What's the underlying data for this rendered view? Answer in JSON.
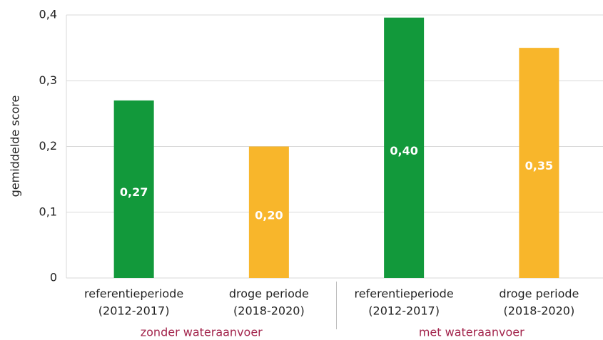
{
  "chart_data": {
    "type": "bar",
    "y_label": "gemiddelde score",
    "categories": [
      [
        "referentieperiode",
        "(2012-2017)"
      ],
      [
        "droge periode",
        "(2018-2020)"
      ],
      [
        "referentieperiode",
        "(2012-2017)"
      ],
      [
        "droge periode",
        "(2018-2020)"
      ]
    ],
    "groups": [
      "zonder wateraanvoer",
      "met wateraanvoer"
    ],
    "values": [
      0.27,
      0.2,
      0.396,
      0.35
    ],
    "value_labels": [
      "0,27",
      "0,20",
      "0,40",
      "0,35"
    ],
    "colors": [
      "#12993b",
      "#f8b62b",
      "#12993b",
      "#f8b62b"
    ],
    "ylim": [
      0,
      0.4
    ],
    "yticks": [
      0,
      {
        "value": 0.1,
        "label": "0,1"
      },
      {
        "value": 0.2,
        "label": "0,2"
      },
      {
        "value": 0.3,
        "label": "0,3"
      },
      {
        "value": 0.4,
        "label": "0,4"
      }
    ],
    "grid": true
  }
}
